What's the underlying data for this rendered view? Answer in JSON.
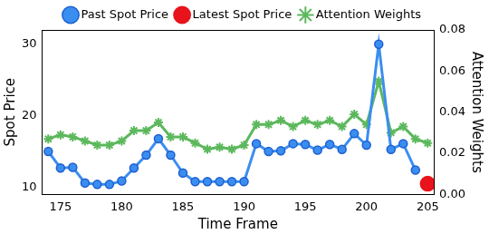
{
  "chart_data": {
    "type": "line",
    "x_label": "Time Frame",
    "y_label": "Spot Price",
    "y2_label": "Attention Weights",
    "x": [
      174,
      175,
      176,
      177,
      178,
      179,
      180,
      181,
      182,
      183,
      184,
      185,
      186,
      187,
      188,
      189,
      190,
      191,
      192,
      193,
      194,
      195,
      196,
      197,
      198,
      199,
      200,
      201,
      202,
      203,
      204,
      205
    ],
    "series": [
      {
        "name": "Past Spot Price",
        "color": "#3a8ef0",
        "marker": "circle",
        "axis": "y",
        "values": [
          15,
          12.7,
          12.8,
          10.6,
          10.4,
          10.4,
          10.9,
          12.7,
          14.5,
          16.8,
          14.5,
          12,
          10.8,
          10.8,
          10.8,
          10.8,
          10.8,
          16.1,
          15,
          15.1,
          16.1,
          16,
          15.2,
          16,
          15.3,
          17.5,
          15.9,
          30,
          15.3,
          16.1,
          12.4,
          null
        ]
      },
      {
        "name": "Latest Spot Price",
        "color": "#e8131b",
        "marker": "circle",
        "axis": "y",
        "values": [
          null,
          null,
          null,
          null,
          null,
          null,
          null,
          null,
          null,
          null,
          null,
          null,
          null,
          null,
          null,
          null,
          null,
          null,
          null,
          null,
          null,
          null,
          null,
          null,
          null,
          null,
          null,
          null,
          null,
          null,
          null,
          10.5
        ]
      },
      {
        "name": "Attention Weights",
        "color": "#5cb85c",
        "marker": "star",
        "axis": "y2",
        "values": [
          0.027,
          0.029,
          0.028,
          0.026,
          0.024,
          0.024,
          0.026,
          0.031,
          0.031,
          0.035,
          0.028,
          0.028,
          0.025,
          0.022,
          0.023,
          0.022,
          0.024,
          0.034,
          0.034,
          0.036,
          0.033,
          0.036,
          0.034,
          0.036,
          0.033,
          0.039,
          0.034,
          0.055,
          0.03,
          0.033,
          0.027,
          0.025
        ]
      }
    ],
    "xlim": [
      173.5,
      205.5
    ],
    "xticks": [
      175,
      180,
      185,
      190,
      195,
      200,
      205
    ],
    "ylim": [
      9,
      32
    ],
    "yticks": [
      10,
      20,
      30
    ],
    "y2lim": [
      0,
      0.08
    ],
    "y2ticks": [
      {
        "value": 0,
        "label": "0.00"
      },
      {
        "value": 0.02,
        "label": "0.02"
      },
      {
        "value": 0.04,
        "label": "0.04"
      },
      {
        "value": 0.06,
        "label": "0.06"
      },
      {
        "value": 0.08,
        "label": "0.08"
      }
    ],
    "grid": false,
    "legend": "top"
  }
}
